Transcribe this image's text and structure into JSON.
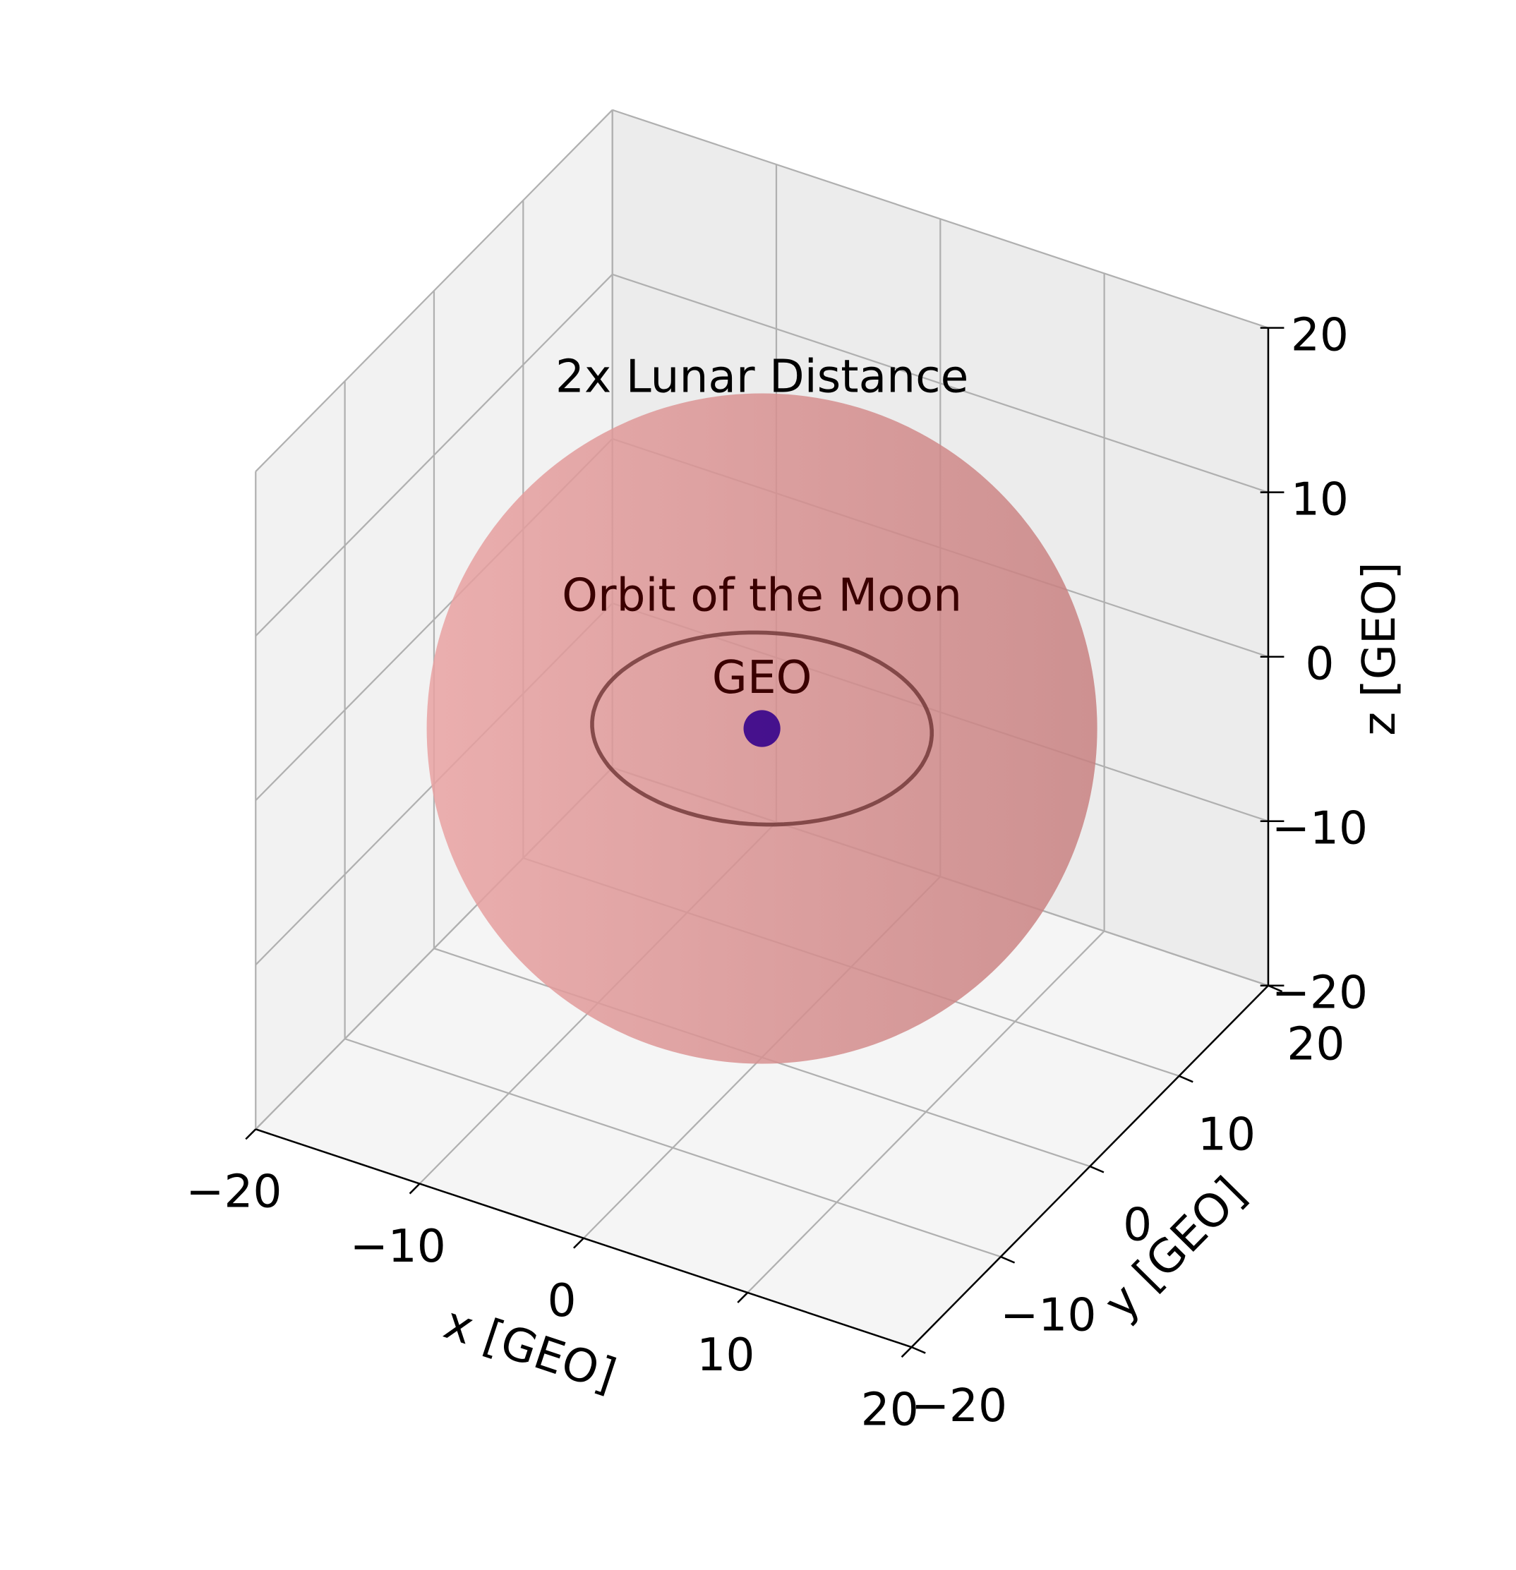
{
  "chart_data": {
    "type": "3d",
    "xlabel": "x [GEO]",
    "ylabel": "y [GEO]",
    "zlabel": "z [GEO]",
    "xlim": [
      -20,
      20
    ],
    "ylim": [
      -20,
      20
    ],
    "zlim": [
      -20,
      20
    ],
    "xticks": [
      {
        "value": -20,
        "label": "−20"
      },
      {
        "value": -10,
        "label": "−10"
      },
      0,
      10,
      20
    ],
    "yticks": [
      {
        "value": -20,
        "label": "−20"
      },
      {
        "value": -10,
        "label": "−10"
      },
      0,
      10,
      20
    ],
    "zticks": [
      {
        "value": -20,
        "label": "−20"
      },
      {
        "value": -10,
        "label": "−10"
      },
      0,
      10,
      20
    ],
    "grid": true,
    "objects": [
      {
        "kind": "sphere",
        "name": "2x Lunar Distance",
        "radius": 18.2,
        "color": "#e48e8e"
      },
      {
        "kind": "circle",
        "name": "Orbit of the Moon",
        "radius": 9.1,
        "color": "#6e3434"
      },
      {
        "kind": "sphere",
        "name": "GEO",
        "radius": 1,
        "color": "#3d0a8c"
      }
    ]
  }
}
